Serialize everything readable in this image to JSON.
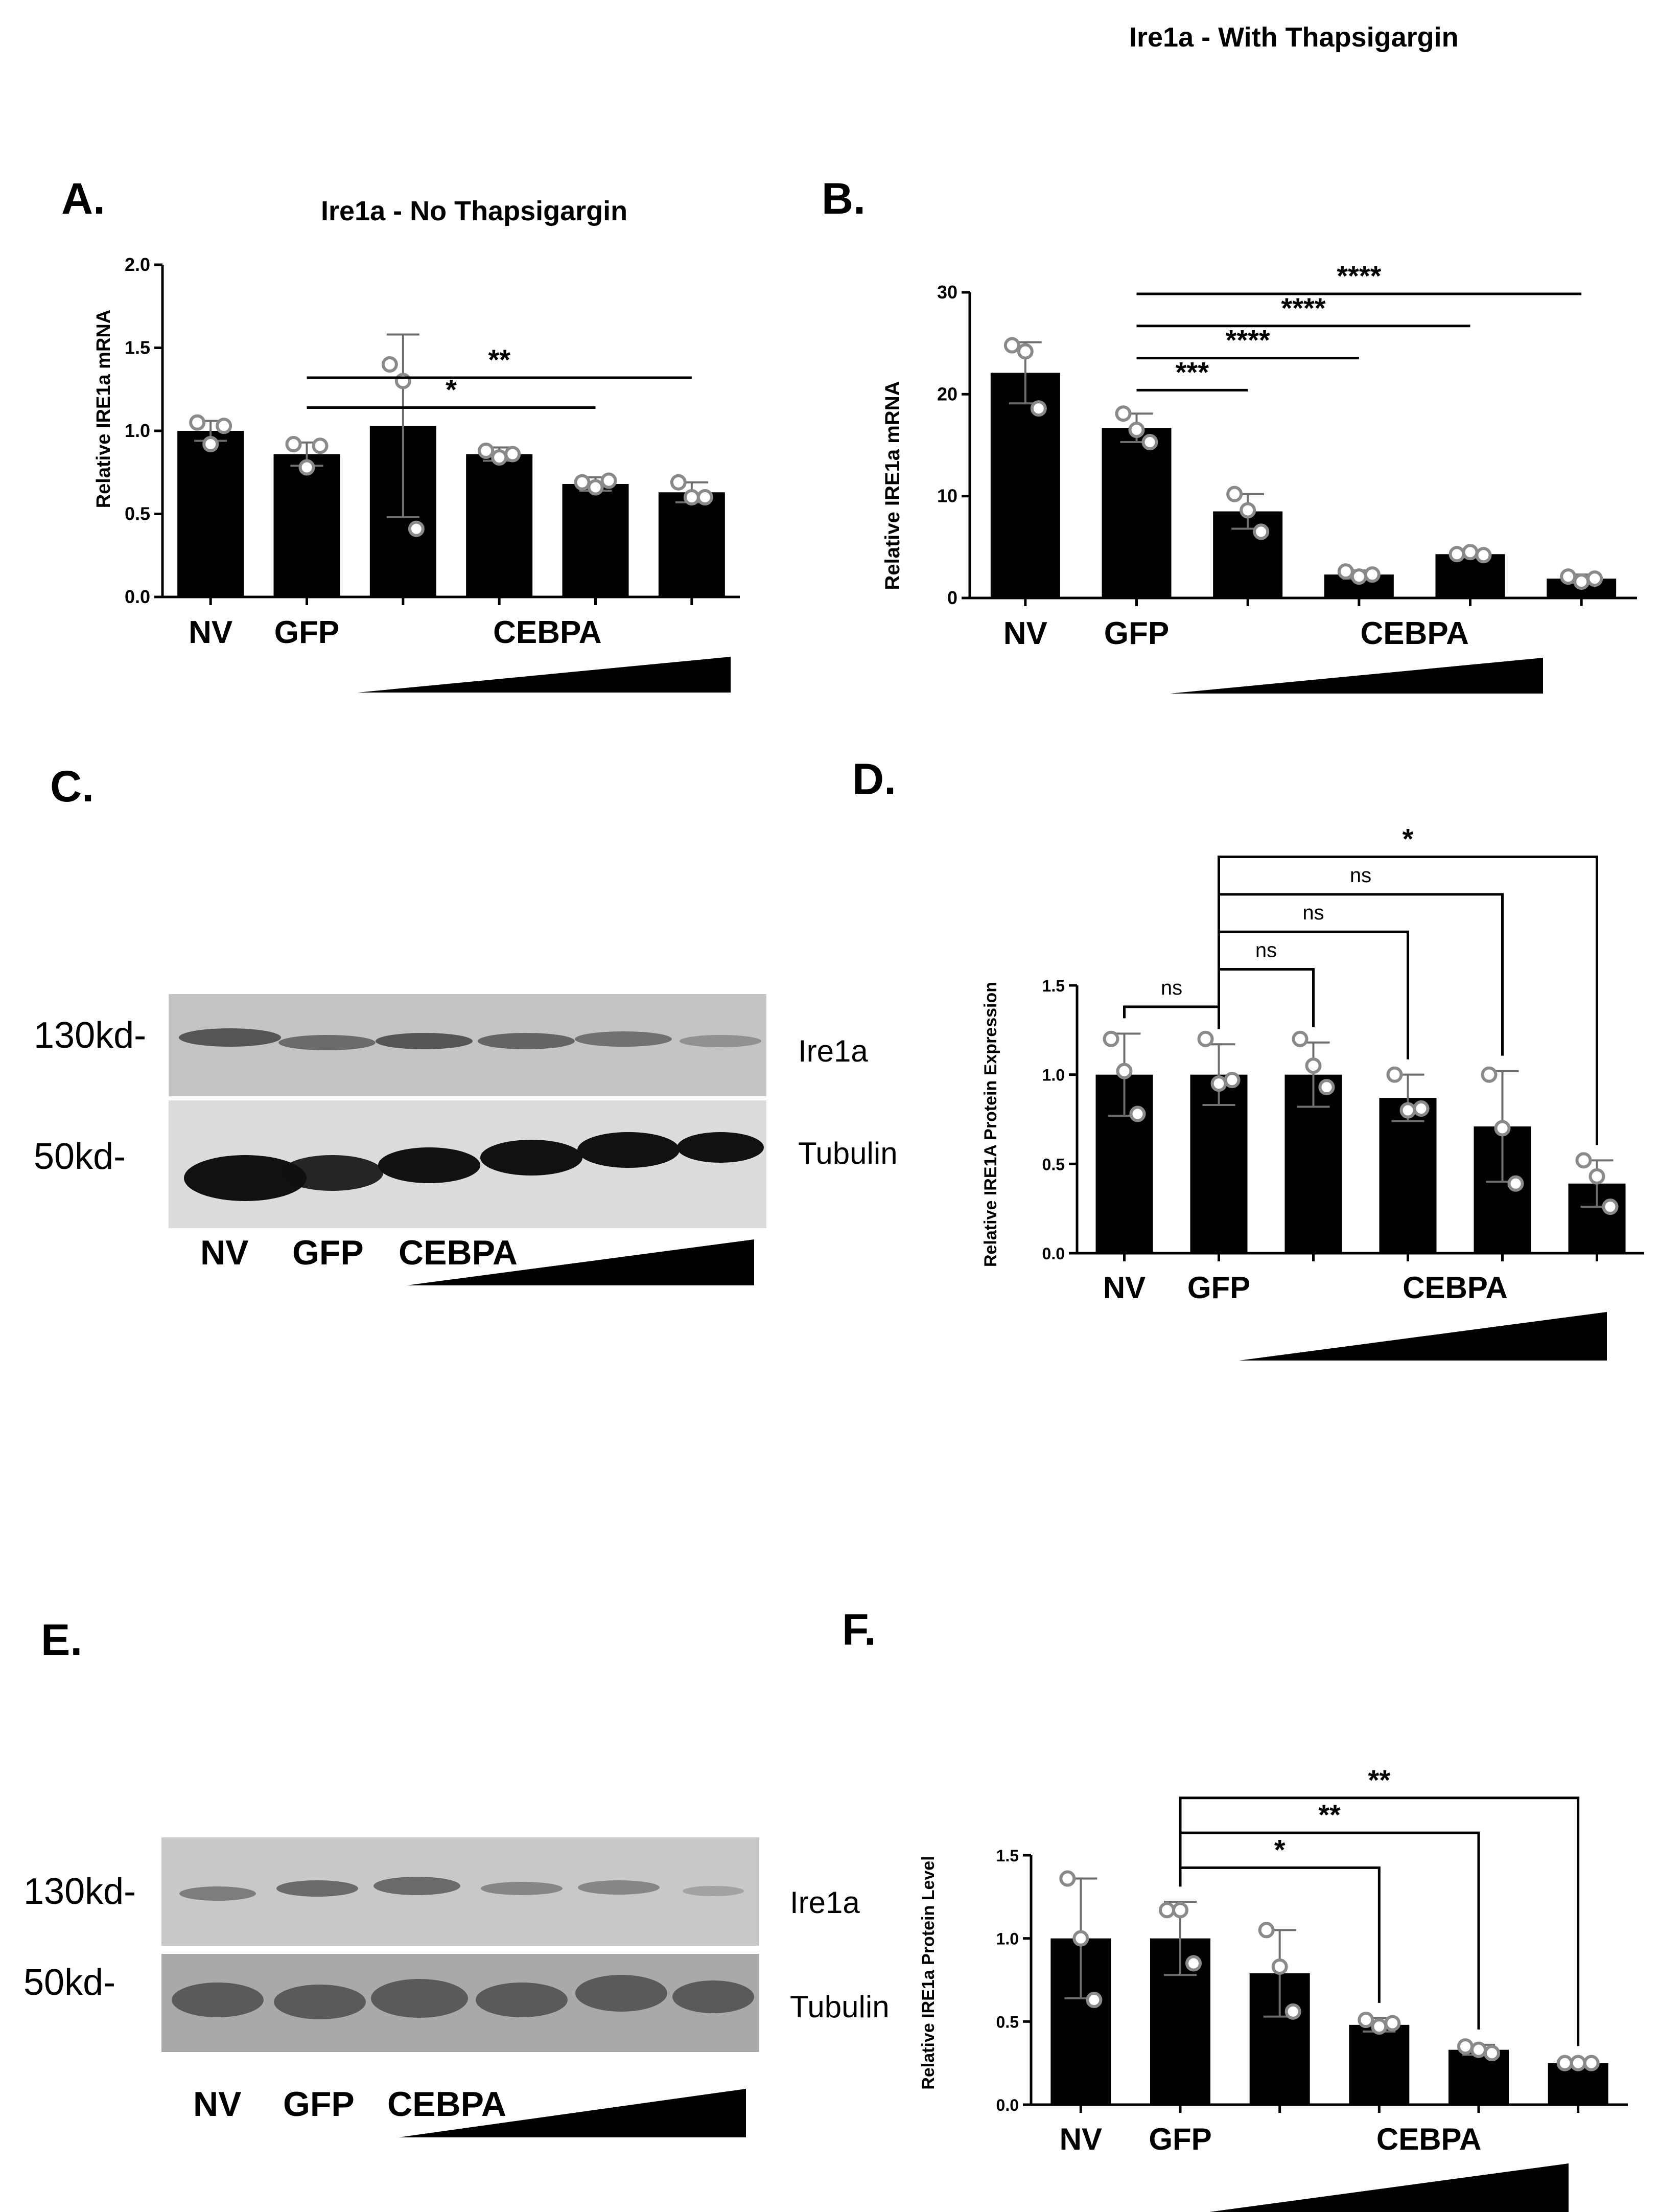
{
  "panels": {
    "A": {
      "label": "A.",
      "title": "Ire1a - No Thapsigargin"
    },
    "B": {
      "label": "B.",
      "title": "Ire1a - With Thapsigargin"
    },
    "C": {
      "label": "C.",
      "marker_high": "130kd-",
      "marker_low": "50kd-",
      "band_top": "Ire1a",
      "band_bottom": "Tubulin",
      "lanes": [
        "NV",
        "GFP",
        "CEBPA"
      ]
    },
    "D": {
      "label": "D."
    },
    "E": {
      "label": "E.",
      "marker_high": "130kd-",
      "marker_low": "50kd-",
      "band_top": "Ire1a",
      "band_bottom": "Tubulin",
      "lanes": [
        "NV",
        "GFP",
        "CEBPA"
      ]
    },
    "F": {
      "label": "F."
    }
  },
  "colors": {
    "bar": "#000000",
    "point": "#8a8a8a",
    "errorbar": "#6e6e6e",
    "axis": "#000000",
    "blot_bg": "#bdbdbd"
  },
  "chart_data": [
    {
      "id": "A",
      "type": "bar",
      "title": "Ire1a - No Thapsigargin",
      "ylabel": "Relative IRE1a mRNA",
      "xlabel": "",
      "ylim": [
        0,
        2.0
      ],
      "yticks": [
        "0.0",
        "0.5",
        "1.0",
        "1.5",
        "2.0"
      ],
      "ytick_values": [
        0,
        0.5,
        1.0,
        1.5,
        2.0
      ],
      "categories": [
        "NV",
        "GFP",
        "CEBPA",
        "CEBPA",
        "CEBPA",
        "CEBPA"
      ],
      "group_labels": [
        "NV",
        "GFP",
        "CEBPA"
      ],
      "values": [
        1.0,
        0.86,
        1.03,
        0.86,
        0.68,
        0.63
      ],
      "errors": [
        0.06,
        0.07,
        0.55,
        0.04,
        0.04,
        0.06
      ],
      "points": [
        [
          1.05,
          0.92,
          1.03
        ],
        [
          0.92,
          0.78,
          0.91
        ],
        [
          1.4,
          1.3,
          0.41
        ],
        [
          0.88,
          0.84,
          0.86
        ],
        [
          0.69,
          0.66,
          0.7
        ],
        [
          0.69,
          0.6,
          0.6
        ]
      ],
      "brackets": [
        {
          "from": 1,
          "to": 5,
          "label": "**"
        },
        {
          "from": 1,
          "to": 4,
          "label": "*"
        }
      ]
    },
    {
      "id": "B",
      "type": "bar",
      "title": "Ire1a - With Thapsigargin",
      "ylabel": "Relative IRE1a mRNA",
      "xlabel": "",
      "ylim": [
        0,
        30
      ],
      "yticks": [
        "0",
        "10",
        "20",
        "30"
      ],
      "ytick_values": [
        0,
        10,
        20,
        30
      ],
      "categories": [
        "NV",
        "GFP",
        "CEBPA",
        "CEBPA",
        "CEBPA",
        "CEBPA"
      ],
      "group_labels": [
        "NV",
        "GFP",
        "CEBPA"
      ],
      "values": [
        22.1,
        16.7,
        8.5,
        2.3,
        4.3,
        1.9
      ],
      "errors": [
        3.0,
        1.4,
        1.7,
        0.4,
        0.3,
        0.4
      ],
      "points": [
        [
          24.8,
          24.2,
          18.6
        ],
        [
          18.1,
          16.5,
          15.3
        ],
        [
          10.2,
          8.6,
          6.5
        ],
        [
          2.6,
          2.1,
          2.3
        ],
        [
          4.3,
          4.5,
          4.2
        ],
        [
          2.1,
          1.6,
          1.9
        ]
      ],
      "brackets": [
        {
          "from": 1,
          "to": 5,
          "label": "****"
        },
        {
          "from": 1,
          "to": 4,
          "label": "****"
        },
        {
          "from": 1,
          "to": 3,
          "label": "****"
        },
        {
          "from": 1,
          "to": 2,
          "label": "***"
        }
      ]
    },
    {
      "id": "D",
      "type": "bar",
      "title": "",
      "ylabel": "Relative IRE1A Protein Expression",
      "xlabel": "",
      "ylim": [
        0,
        1.5
      ],
      "yticks": [
        "0.0",
        "0.5",
        "1.0",
        "1.5"
      ],
      "ytick_values": [
        0,
        0.5,
        1.0,
        1.5
      ],
      "categories": [
        "NV",
        "GFP",
        "CEBPA",
        "CEBPA",
        "CEBPA",
        "CEBPA"
      ],
      "group_labels": [
        "NV",
        "GFP",
        "CEBPA"
      ],
      "values": [
        1.0,
        1.0,
        1.0,
        0.87,
        0.71,
        0.39
      ],
      "errors": [
        0.23,
        0.17,
        0.18,
        0.13,
        0.31,
        0.13
      ],
      "points": [
        [
          1.2,
          1.02,
          0.78
        ],
        [
          1.2,
          0.95,
          0.97
        ],
        [
          1.2,
          1.05,
          0.93
        ],
        [
          1.0,
          0.8,
          0.81
        ],
        [
          1.0,
          0.7,
          0.39
        ],
        [
          0.52,
          0.43,
          0.26
        ]
      ],
      "brackets": [
        {
          "from": 1,
          "to": 5,
          "label": "*"
        },
        {
          "from": 1,
          "to": 4,
          "label": "ns"
        },
        {
          "from": 1,
          "to": 3,
          "label": "ns"
        },
        {
          "from": 0,
          "to": 1,
          "label": "ns"
        },
        {
          "from": 1,
          "to": 2,
          "label": "ns"
        }
      ]
    },
    {
      "id": "F",
      "type": "bar",
      "title": "",
      "ylabel": "Relative IRE1a Protein Level",
      "xlabel": "",
      "ylim": [
        0,
        1.5
      ],
      "yticks": [
        "0.0",
        "0.5",
        "1.0",
        "1.5"
      ],
      "ytick_values": [
        0,
        0.5,
        1.0,
        1.5
      ],
      "categories": [
        "NV",
        "GFP",
        "CEBPA",
        "CEBPA",
        "CEBPA",
        "CEBPA"
      ],
      "group_labels": [
        "NV",
        "GFP",
        "CEBPA"
      ],
      "values": [
        1.0,
        1.0,
        0.79,
        0.48,
        0.33,
        0.25
      ],
      "errors": [
        0.36,
        0.22,
        0.26,
        0.04,
        0.03,
        0.01
      ],
      "points": [
        [
          1.36,
          1.0,
          0.63
        ],
        [
          1.17,
          1.17,
          0.85
        ],
        [
          1.05,
          0.83,
          0.56
        ],
        [
          0.51,
          0.47,
          0.49
        ],
        [
          0.35,
          0.33,
          0.31
        ],
        [
          0.25,
          0.25,
          0.25
        ]
      ],
      "brackets": [
        {
          "from": 1,
          "to": 5,
          "label": "**"
        },
        {
          "from": 1,
          "to": 4,
          "label": "**"
        },
        {
          "from": 1,
          "to": 3,
          "label": "*"
        }
      ]
    }
  ]
}
